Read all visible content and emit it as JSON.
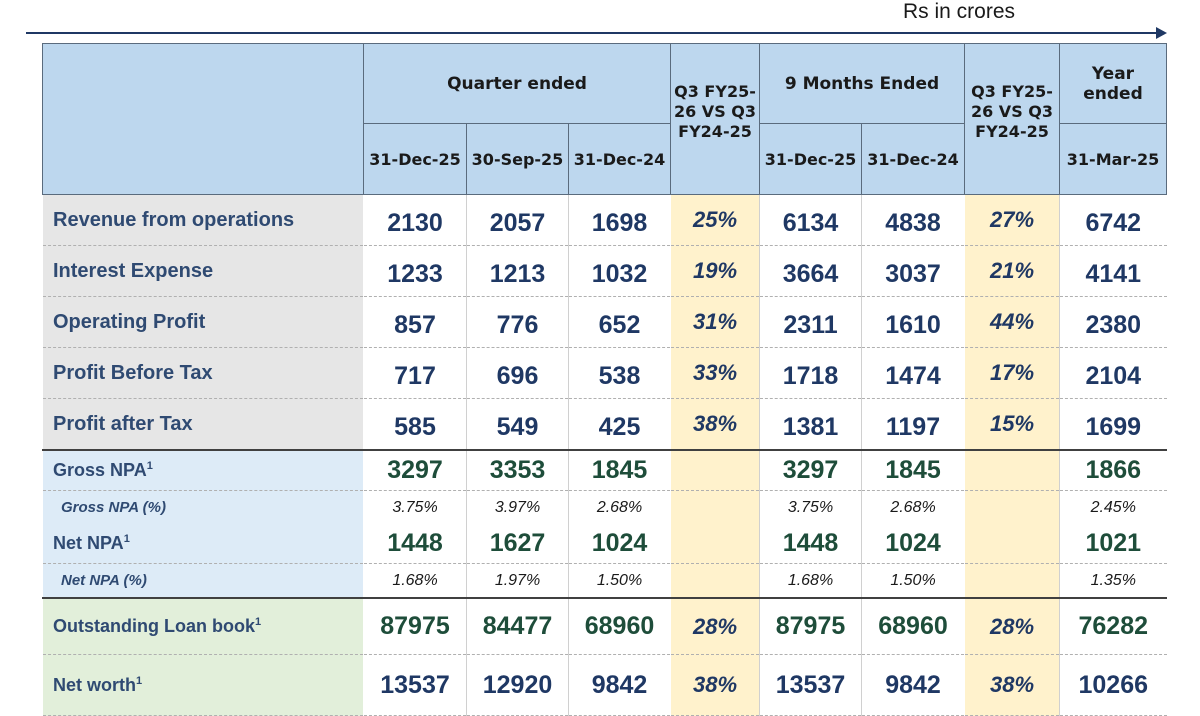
{
  "units": "Rs in crores",
  "header": {
    "quarter_ended": "Quarter ended",
    "nine_months_ended": "9 Months Ended",
    "year_ended": "Year ended",
    "vs_line1": "Q3 FY25-",
    "vs_line2": "26 VS Q3",
    "vs_line3": "FY24-25",
    "dates": [
      "31-Dec-25",
      "30-Sep-25",
      "31-Dec-24",
      "31-Dec-25",
      "31-Dec-24",
      "31-Mar-25"
    ]
  },
  "rows": {
    "revenue": {
      "label": "Revenue from operations",
      "values": [
        "2130",
        "2057",
        "1698",
        "25%",
        "6134",
        "4838",
        "27%",
        "6742"
      ]
    },
    "interest": {
      "label": "Interest Expense",
      "values": [
        "1233",
        "1213",
        "1032",
        "19%",
        "3664",
        "3037",
        "21%",
        "4141"
      ]
    },
    "operating": {
      "label": "Operating Profit",
      "values": [
        "857",
        "776",
        "652",
        "31%",
        "2311",
        "1610",
        "44%",
        "2380"
      ]
    },
    "pbt": {
      "label": "Profit Before Tax",
      "values": [
        "717",
        "696",
        "538",
        "33%",
        "1718",
        "1474",
        "17%",
        "2104"
      ]
    },
    "pat": {
      "label": "Profit after Tax",
      "values": [
        "585",
        "549",
        "425",
        "38%",
        "1381",
        "1197",
        "15%",
        "1699"
      ]
    },
    "gnpa": {
      "label": "Gross NPA",
      "sup": "1",
      "values": [
        "3297",
        "3353",
        "1845",
        "",
        "3297",
        "1845",
        "",
        "1866"
      ]
    },
    "gnpa_pct": {
      "label": "Gross NPA (%)",
      "values": [
        "3.75%",
        "3.97%",
        "2.68%",
        "",
        "3.75%",
        "2.68%",
        "",
        "2.45%"
      ]
    },
    "nnpa": {
      "label": "Net NPA",
      "sup": "1",
      "values": [
        "1448",
        "1627",
        "1024",
        "",
        "1448",
        "1024",
        "",
        "1021"
      ]
    },
    "nnpa_pct": {
      "label": "Net NPA (%)",
      "values": [
        "1.68%",
        "1.97%",
        "1.50%",
        "",
        "1.68%",
        "1.50%",
        "",
        "1.35%"
      ]
    },
    "loanbook": {
      "label": "Outstanding Loan book",
      "sup": "1",
      "values": [
        "87975",
        "84477",
        "68960",
        "28%",
        "87975",
        "68960",
        "28%",
        "76282"
      ]
    },
    "networth": {
      "label": "Net worth",
      "sup": "1",
      "values": [
        "13537",
        "12920",
        "9842",
        "38%",
        "13537",
        "9842",
        "38%",
        "10266"
      ]
    }
  }
}
